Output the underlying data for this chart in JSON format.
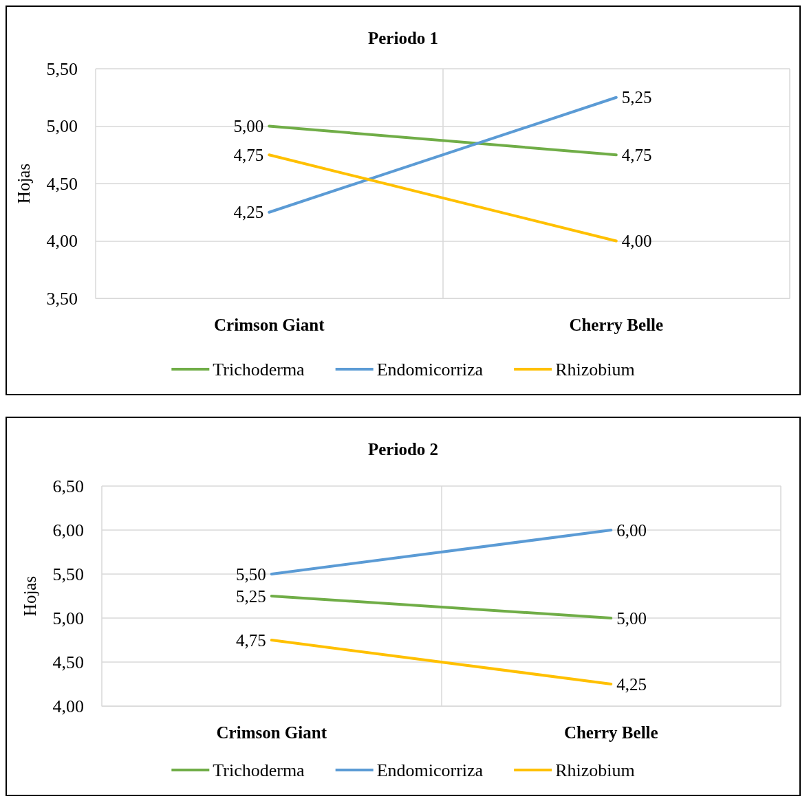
{
  "chart_data": [
    {
      "type": "line",
      "title": "Periodo 1",
      "ylabel": "Hojas",
      "categories": [
        "Crimson Giant",
        "Cherry Belle"
      ],
      "ylim": [
        3.5,
        5.5
      ],
      "yticks": [
        {
          "value": 3.5,
          "label": "3,50"
        },
        {
          "value": 4,
          "label": "4,00"
        },
        {
          "value": 4.5,
          "label": "4,50"
        },
        {
          "value": 5,
          "label": "5,00"
        },
        {
          "value": 5.5,
          "label": "5,50"
        }
      ],
      "grid": true,
      "legend": "bottom",
      "marker": "none",
      "line_style": "solid",
      "series": [
        {
          "name": "Trichoderma",
          "color": "#70ad47",
          "values": [
            5,
            4.75
          ],
          "value_labels": [
            "5,00",
            "4,75"
          ]
        },
        {
          "name": "Endomicorriza",
          "color": "#5b9bd5",
          "values": [
            4.25,
            5.25
          ],
          "value_labels": [
            "4,25",
            "5,25"
          ]
        },
        {
          "name": "Rhizobium",
          "color": "#ffc000",
          "values": [
            4.75,
            4
          ],
          "value_labels": [
            "4,75",
            "4,00"
          ]
        }
      ]
    },
    {
      "type": "line",
      "title": "Periodo 2",
      "ylabel": "Hojas",
      "categories": [
        "Crimson Giant",
        "Cherry Belle"
      ],
      "ylim": [
        4,
        6.5
      ],
      "yticks": [
        {
          "value": 4,
          "label": "4,00"
        },
        {
          "value": 4.5,
          "label": "4,50"
        },
        {
          "value": 5,
          "label": "5,00"
        },
        {
          "value": 5.5,
          "label": "5,50"
        },
        {
          "value": 6,
          "label": "6,00"
        },
        {
          "value": 6.5,
          "label": "6,50"
        }
      ],
      "grid": true,
      "legend": "bottom",
      "marker": "none",
      "line_style": "solid",
      "series": [
        {
          "name": "Trichoderma",
          "color": "#70ad47",
          "values": [
            5.25,
            5
          ],
          "value_labels": [
            "5,25",
            "5,00"
          ]
        },
        {
          "name": "Endomicorriza",
          "color": "#5b9bd5",
          "values": [
            5.5,
            6
          ],
          "value_labels": [
            "5,50",
            "6,00"
          ]
        },
        {
          "name": "Rhizobium",
          "color": "#ffc000",
          "values": [
            4.75,
            4.25
          ],
          "value_labels": [
            "4,75",
            "4,25"
          ]
        }
      ]
    }
  ]
}
